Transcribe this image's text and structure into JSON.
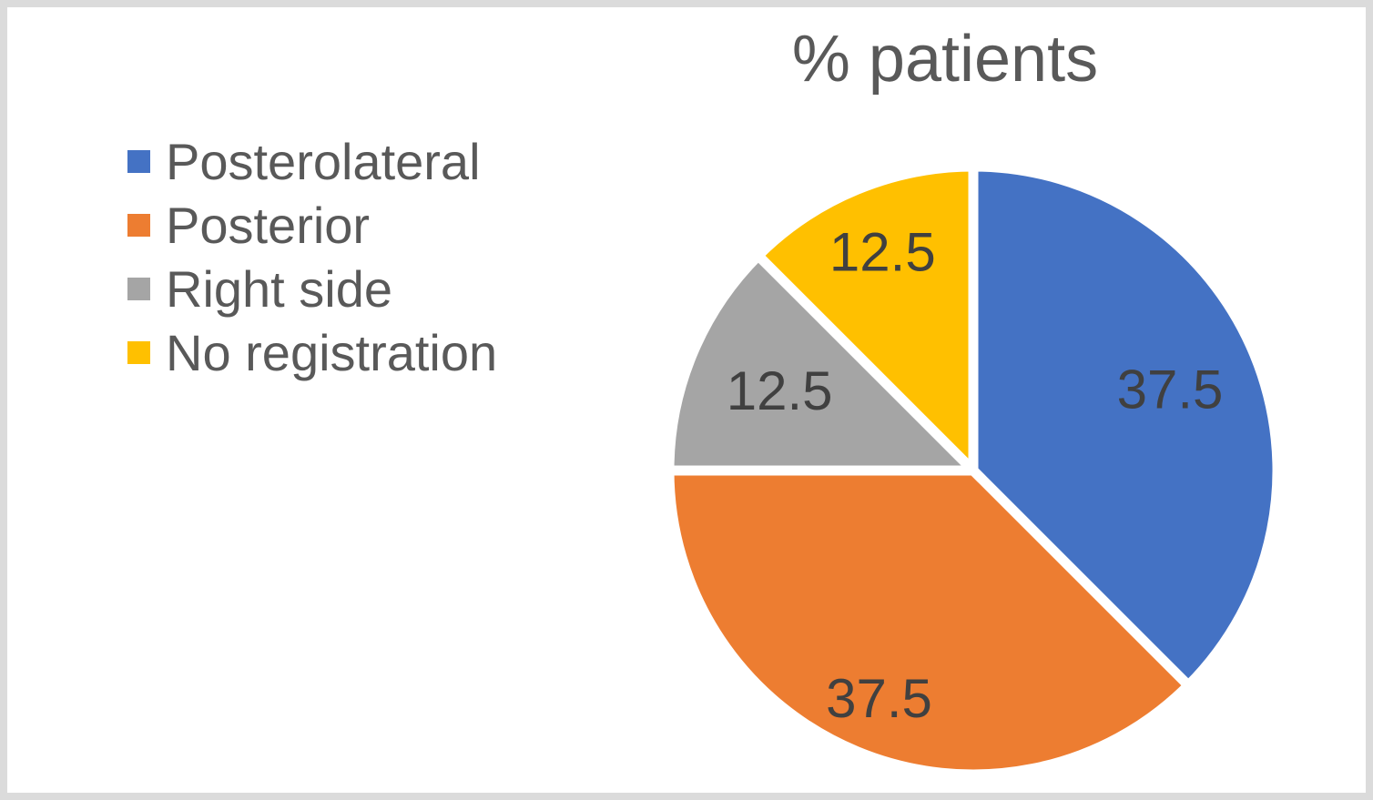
{
  "chart_data": {
    "type": "pie",
    "title": "% patients",
    "series": [
      {
        "label": "Posterolateral",
        "value": 37.5,
        "data_label": "37.5",
        "color": "#4472C4"
      },
      {
        "label": "Posterior",
        "value": 37.5,
        "data_label": "37.5",
        "color": "#ED7D31"
      },
      {
        "label": "Right side",
        "value": 12.5,
        "data_label": "12.5",
        "color": "#A5A5A5"
      },
      {
        "label": "No registration",
        "value": 12.5,
        "data_label": "12.5",
        "color": "#FFC000"
      }
    ],
    "start_angle_deg": 0,
    "direction": "clockwise",
    "legend_position": "left",
    "title_color": "#595959",
    "legend_text_color": "#595959",
    "data_label_color": "#404040",
    "slice_border_color": "#FFFFFF",
    "frame_border_color": "#DBDBDB",
    "background_color": "#FFFFFF",
    "label_radius_fractions": [
      0.7,
      0.81,
      0.69,
      0.78
    ]
  }
}
